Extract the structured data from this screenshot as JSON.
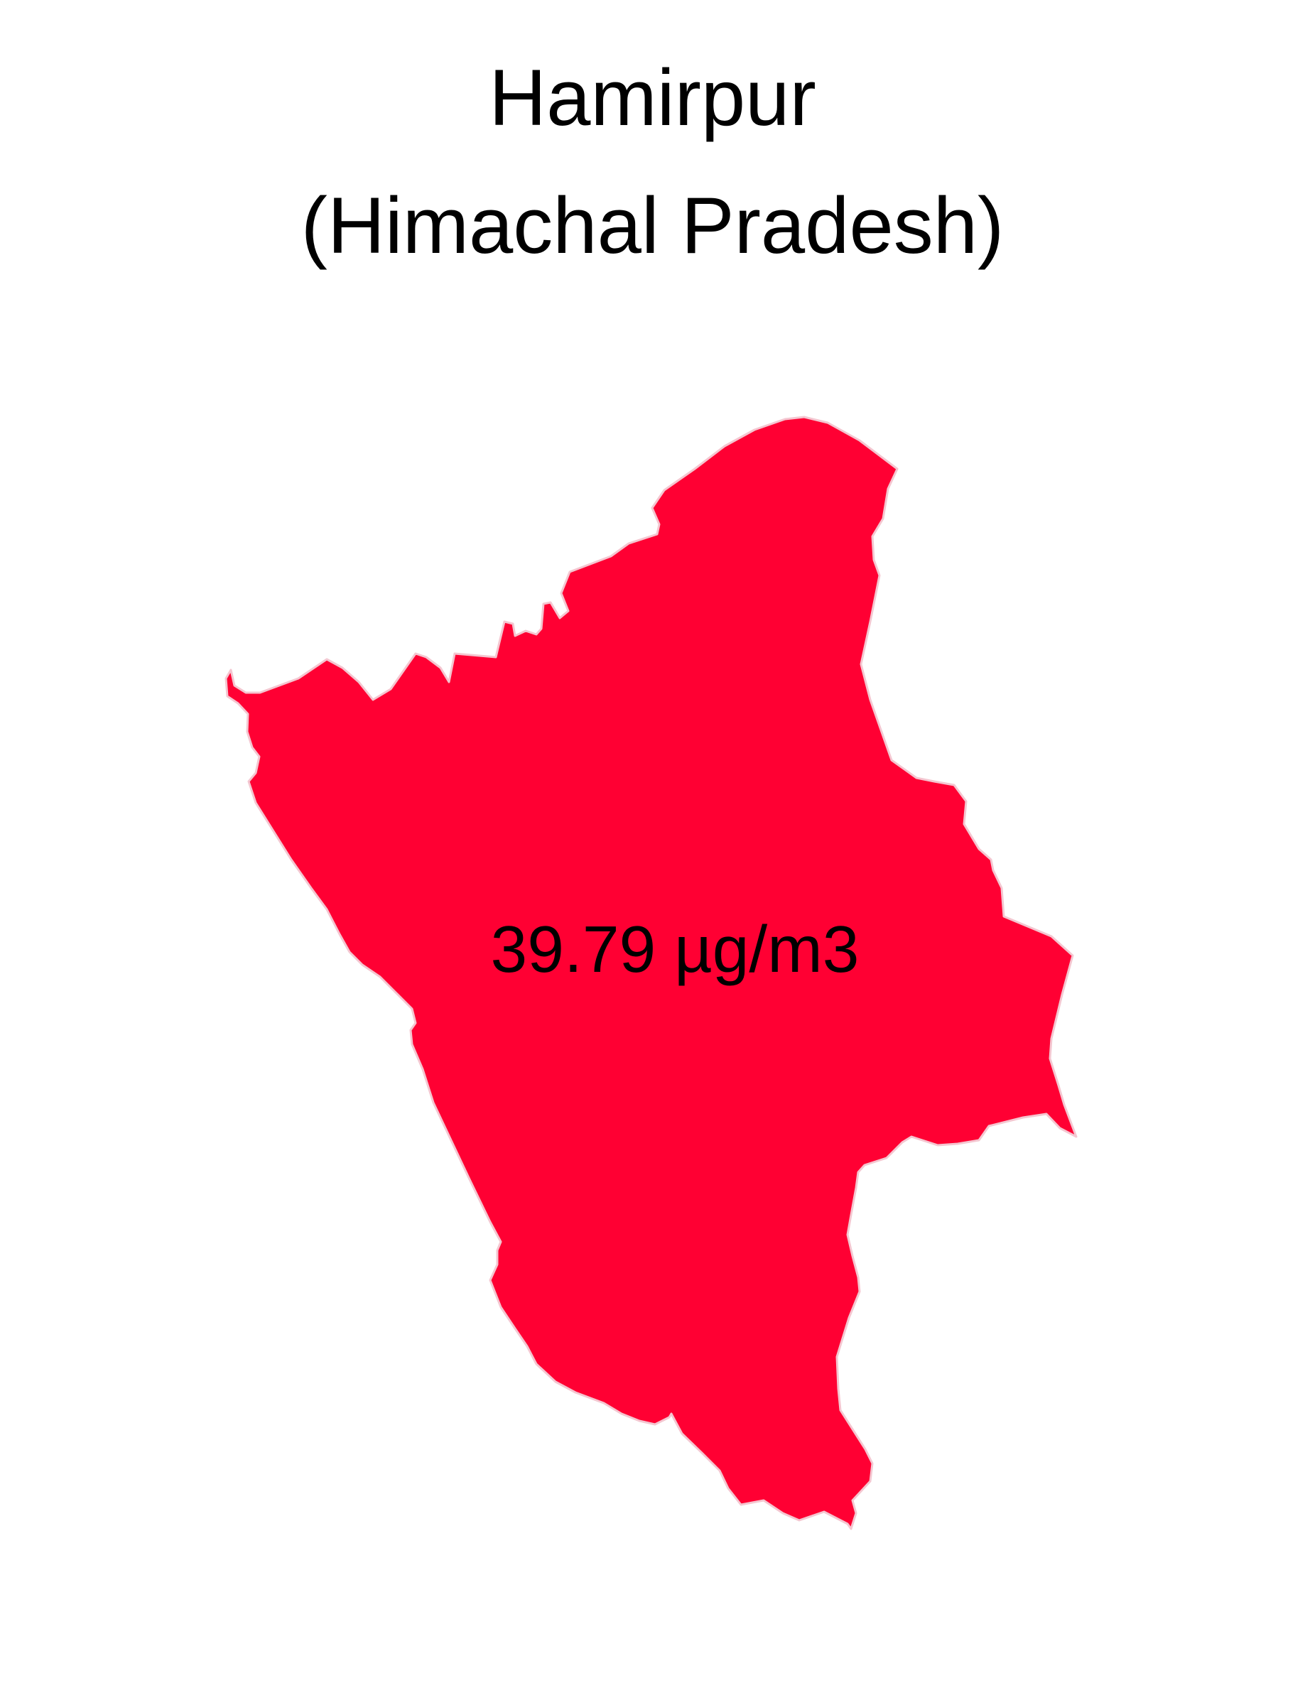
{
  "map": {
    "title_line_1": "Hamirpur",
    "title_line_2": "(Himachal Pradesh)",
    "district": "Hamirpur",
    "state": "Himachal Pradesh",
    "value_label": "39.79 µg/m3",
    "fill_color": "#FF0033",
    "border_color": "#F4C6D0"
  }
}
